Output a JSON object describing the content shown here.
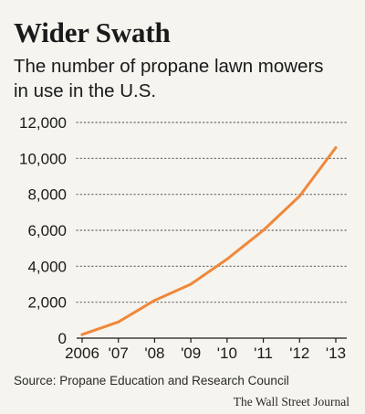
{
  "chart_data": {
    "type": "line",
    "title": "Wider Swath",
    "subtitle": "The number of propane lawn mowers in use in the U.S.",
    "x": [
      "2006",
      "'07",
      "'08",
      "'09",
      "'10",
      "'11",
      "'12",
      "'13"
    ],
    "series": [
      {
        "values": [
          200,
          900,
          2100,
          3000,
          4400,
          6000,
          7900,
          10600
        ]
      }
    ],
    "yticks": [
      "0",
      "2,000",
      "4,000",
      "6,000",
      "8,000",
      "10,000",
      "12,000"
    ],
    "ytick_values": [
      0,
      2000,
      4000,
      6000,
      8000,
      10000,
      12000
    ],
    "ylim": [
      0,
      12000
    ],
    "xlabel": "",
    "ylabel": "",
    "grid": "horizontal dotted",
    "legend": "none",
    "line_color": "#f0883a",
    "grid_color": "#666666",
    "source": "Source: Propane Education and Research Council",
    "credit": "The Wall Street Journal"
  }
}
